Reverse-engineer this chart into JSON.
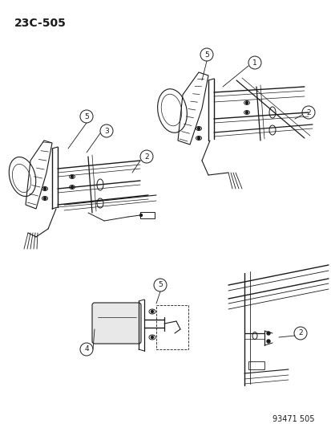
{
  "title": "23C-505",
  "footer": "93471 505",
  "bg_color": "#ffffff",
  "line_color": "#1a1a1a",
  "title_fontsize": 10,
  "footer_fontsize": 7,
  "figsize": [
    4.14,
    5.33
  ],
  "dpi": 100
}
